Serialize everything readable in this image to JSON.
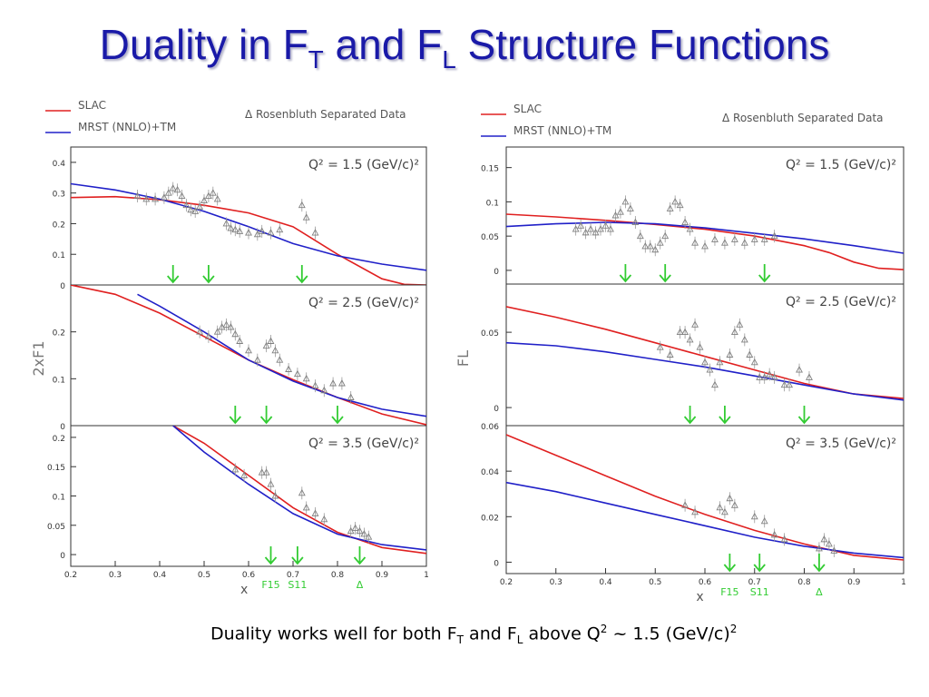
{
  "title": {
    "main": "Duality in F",
    "sub1": "T",
    "mid": " and F",
    "sub2": "L",
    "rest": " Structure Functions"
  },
  "caption": {
    "a": "Duality works well for both F",
    "sub1": "T",
    "b": " and F",
    "sub2": "L",
    "c": " above Q",
    "sup1": "2",
    "d": " ~ 1.5 (GeV/c)",
    "sup2": "2"
  },
  "colors": {
    "slac": "#e02020",
    "mrst": "#2020c8",
    "data": "#808080",
    "arrow": "#33cc33",
    "title": "#1a1aa8"
  },
  "chart_data": [
    {
      "type": "line",
      "ylabel": "2xF1",
      "xlabel": "x",
      "xlim": [
        0.2,
        1.0
      ],
      "x_ticks": [
        "0.2",
        "0.3",
        "0.4",
        "0.5",
        "0.6",
        "0.7",
        "0.8",
        "0.9",
        "1"
      ],
      "legend": {
        "entries": [
          "SLAC",
          "MRST (NNLO)+TM"
        ],
        "data_label": "Rosenbluth Separated Data"
      },
      "resonance_labels": [
        "F15",
        "S11",
        "Δ"
      ],
      "panels": [
        {
          "label": "Q² = 1.5 (GeV/c)²",
          "ylim": [
            0,
            0.45
          ],
          "y_ticks": [
            "0",
            "0.1",
            "0.2",
            "0.3",
            "0.4"
          ],
          "series": [
            {
              "name": "SLAC",
              "x": [
                0.2,
                0.3,
                0.4,
                0.5,
                0.6,
                0.7,
                0.8,
                0.9,
                0.95,
                1.0
              ],
              "values": [
                0.285,
                0.288,
                0.278,
                0.26,
                0.235,
                0.19,
                0.1,
                0.02,
                0.002,
                0
              ]
            },
            {
              "name": "MRST (NNLO)+TM",
              "x": [
                0.2,
                0.3,
                0.4,
                0.5,
                0.6,
                0.7,
                0.8,
                0.9,
                1.0
              ],
              "values": [
                0.33,
                0.31,
                0.28,
                0.24,
                0.19,
                0.135,
                0.095,
                0.068,
                0.048
              ]
            }
          ],
          "data": {
            "x": [
              0.35,
              0.37,
              0.39,
              0.41,
              0.42,
              0.43,
              0.44,
              0.45,
              0.46,
              0.47,
              0.48,
              0.49,
              0.5,
              0.51,
              0.52,
              0.53,
              0.55,
              0.56,
              0.57,
              0.58,
              0.6,
              0.62,
              0.63,
              0.65,
              0.67,
              0.72,
              0.73,
              0.75
            ],
            "y": [
              0.29,
              0.28,
              0.28,
              0.285,
              0.3,
              0.315,
              0.31,
              0.29,
              0.26,
              0.245,
              0.24,
              0.255,
              0.275,
              0.29,
              0.3,
              0.28,
              0.2,
              0.185,
              0.18,
              0.175,
              0.17,
              0.165,
              0.175,
              0.17,
              0.18,
              0.26,
              0.22,
              0.17
            ]
          },
          "arrows_x": [
            0.43,
            0.51,
            0.72
          ]
        },
        {
          "label": "Q² = 2.5 (GeV/c)²",
          "ylim": [
            0,
            0.3
          ],
          "y_ticks": [
            "0",
            "0.1",
            "0.2"
          ],
          "series": [
            {
              "name": "SLAC",
              "x": [
                0.2,
                0.3,
                0.4,
                0.5,
                0.6,
                0.7,
                0.8,
                0.9,
                1.0
              ],
              "values": [
                0.3,
                0.28,
                0.24,
                0.19,
                0.14,
                0.098,
                0.06,
                0.025,
                0.002
              ]
            },
            {
              "name": "MRST (NNLO)+TM",
              "x": [
                0.35,
                0.4,
                0.5,
                0.6,
                0.7,
                0.8,
                0.9,
                1.0
              ],
              "values": [
                0.28,
                0.255,
                0.2,
                0.14,
                0.095,
                0.06,
                0.035,
                0.02
              ]
            }
          ],
          "data": {
            "x": [
              0.49,
              0.51,
              0.53,
              0.54,
              0.55,
              0.56,
              0.57,
              0.58,
              0.6,
              0.62,
              0.64,
              0.65,
              0.66,
              0.67,
              0.69,
              0.71,
              0.73,
              0.75,
              0.77,
              0.79,
              0.81,
              0.83
            ],
            "y": [
              0.2,
              0.19,
              0.2,
              0.21,
              0.215,
              0.21,
              0.195,
              0.18,
              0.16,
              0.14,
              0.17,
              0.18,
              0.16,
              0.14,
              0.12,
              0.11,
              0.1,
              0.085,
              0.075,
              0.09,
              0.09,
              0.06
            ]
          },
          "arrows_x": [
            0.57,
            0.64,
            0.8
          ]
        },
        {
          "label": "Q² = 3.5 (GeV/c)²",
          "ylim": [
            -0.02,
            0.22
          ],
          "y_ticks": [
            "0",
            "0.05",
            "0.1",
            "0.15",
            "0.2"
          ],
          "series": [
            {
              "name": "SLAC",
              "x": [
                0.43,
                0.5,
                0.6,
                0.7,
                0.8,
                0.9,
                1.0
              ],
              "values": [
                0.22,
                0.19,
                0.135,
                0.08,
                0.038,
                0.012,
                0.002
              ]
            },
            {
              "name": "MRST (NNLO)+TM",
              "x": [
                0.43,
                0.5,
                0.6,
                0.7,
                0.8,
                0.9,
                1.0
              ],
              "values": [
                0.22,
                0.175,
                0.12,
                0.07,
                0.035,
                0.017,
                0.008
              ]
            }
          ],
          "data": {
            "x": [
              0.57,
              0.59,
              0.63,
              0.64,
              0.65,
              0.66,
              0.72,
              0.73,
              0.75,
              0.77,
              0.83,
              0.84,
              0.85,
              0.86,
              0.87
            ],
            "y": [
              0.145,
              0.135,
              0.14,
              0.14,
              0.12,
              0.1,
              0.105,
              0.08,
              0.07,
              0.06,
              0.04,
              0.045,
              0.04,
              0.035,
              0.03
            ]
          },
          "arrows_x": [
            0.65,
            0.71,
            0.85
          ]
        }
      ]
    },
    {
      "type": "line",
      "ylabel": "FL",
      "xlabel": "x",
      "xlim": [
        0.2,
        1.0
      ],
      "x_ticks": [
        "0.2",
        "0.3",
        "0.4",
        "0.5",
        "0.6",
        "0.7",
        "0.8",
        "0.9",
        "1"
      ],
      "legend": {
        "entries": [
          "SLAC",
          "MRST (NNLO)+TM"
        ],
        "data_label": "Rosenbluth Separated Data"
      },
      "resonance_labels": [
        "F15",
        "S11",
        "Δ"
      ],
      "panels": [
        {
          "label": "Q² = 1.5 (GeV/c)²",
          "ylim": [
            -0.02,
            0.18
          ],
          "y_ticks": [
            "0",
            "0.05",
            "0.1",
            "0.15"
          ],
          "series": [
            {
              "name": "SLAC",
              "x": [
                0.2,
                0.3,
                0.4,
                0.5,
                0.6,
                0.7,
                0.8,
                0.85,
                0.9,
                0.95,
                1.0
              ],
              "values": [
                0.082,
                0.078,
                0.073,
                0.067,
                0.06,
                0.05,
                0.036,
                0.026,
                0.012,
                0.003,
                0.001
              ]
            },
            {
              "name": "MRST (NNLO)+TM",
              "x": [
                0.2,
                0.3,
                0.4,
                0.5,
                0.6,
                0.7,
                0.8,
                0.9,
                1.0
              ],
              "values": [
                0.064,
                0.068,
                0.07,
                0.068,
                0.062,
                0.054,
                0.046,
                0.036,
                0.025
              ]
            }
          ],
          "data": {
            "x": [
              0.34,
              0.35,
              0.36,
              0.37,
              0.38,
              0.39,
              0.4,
              0.41,
              0.42,
              0.43,
              0.44,
              0.45,
              0.46,
              0.47,
              0.48,
              0.49,
              0.5,
              0.51,
              0.52,
              0.53,
              0.54,
              0.55,
              0.56,
              0.57,
              0.58,
              0.6,
              0.62,
              0.64,
              0.66,
              0.68,
              0.7,
              0.72,
              0.74
            ],
            "y": [
              0.06,
              0.065,
              0.055,
              0.06,
              0.055,
              0.06,
              0.065,
              0.06,
              0.08,
              0.085,
              0.1,
              0.09,
              0.07,
              0.05,
              0.035,
              0.035,
              0.03,
              0.04,
              0.05,
              0.09,
              0.1,
              0.095,
              0.07,
              0.06,
              0.04,
              0.035,
              0.045,
              0.04,
              0.045,
              0.04,
              0.045,
              0.045,
              0.05
            ]
          },
          "arrows_x": [
            0.44,
            0.52,
            0.72
          ]
        },
        {
          "label": "Q² = 2.5 (GeV/c)²",
          "ylim": [
            -0.012,
            0.082
          ],
          "y_ticks": [
            "0",
            "0.05"
          ],
          "series": [
            {
              "name": "SLAC",
              "x": [
                0.2,
                0.3,
                0.4,
                0.5,
                0.6,
                0.7,
                0.8,
                0.9,
                1.0
              ],
              "values": [
                0.067,
                0.06,
                0.052,
                0.043,
                0.034,
                0.025,
                0.016,
                0.009,
                0.006
              ]
            },
            {
              "name": "MRST (NNLO)+TM",
              "x": [
                0.2,
                0.3,
                0.4,
                0.5,
                0.6,
                0.7,
                0.8,
                0.9,
                1.0
              ],
              "values": [
                0.043,
                0.041,
                0.037,
                0.032,
                0.027,
                0.021,
                0.015,
                0.009,
                0.005
              ]
            }
          ],
          "data": {
            "x": [
              0.51,
              0.53,
              0.55,
              0.56,
              0.57,
              0.58,
              0.59,
              0.6,
              0.61,
              0.62,
              0.63,
              0.65,
              0.66,
              0.67,
              0.68,
              0.69,
              0.7,
              0.71,
              0.72,
              0.73,
              0.74,
              0.76,
              0.77,
              0.79,
              0.81
            ],
            "y": [
              0.04,
              0.035,
              0.05,
              0.05,
              0.045,
              0.055,
              0.04,
              0.03,
              0.025,
              0.015,
              0.03,
              0.035,
              0.05,
              0.055,
              0.045,
              0.035,
              0.03,
              0.02,
              0.02,
              0.022,
              0.02,
              0.015,
              0.015,
              0.025,
              0.02
            ]
          },
          "arrows_x": [
            0.57,
            0.64,
            0.8
          ]
        },
        {
          "label": "Q² = 3.5 (GeV/c)²",
          "ylim": [
            -0.005,
            0.06
          ],
          "y_ticks": [
            "0",
            "0.02",
            "0.04",
            "0.06"
          ],
          "series": [
            {
              "name": "SLAC",
              "x": [
                0.2,
                0.3,
                0.4,
                0.5,
                0.6,
                0.7,
                0.8,
                0.9,
                1.0
              ],
              "values": [
                0.056,
                0.047,
                0.038,
                0.029,
                0.021,
                0.014,
                0.008,
                0.003,
                0.001
              ]
            },
            {
              "name": "MRST (NNLO)+TM",
              "x": [
                0.2,
                0.3,
                0.4,
                0.5,
                0.6,
                0.7,
                0.8,
                0.9,
                1.0
              ],
              "values": [
                0.035,
                0.031,
                0.026,
                0.021,
                0.016,
                0.011,
                0.007,
                0.004,
                0.002
              ]
            }
          ],
          "data": {
            "x": [
              0.56,
              0.58,
              0.63,
              0.64,
              0.65,
              0.66,
              0.7,
              0.72,
              0.74,
              0.76,
              0.83,
              0.84,
              0.85,
              0.86
            ],
            "y": [
              0.025,
              0.022,
              0.024,
              0.022,
              0.028,
              0.025,
              0.02,
              0.018,
              0.012,
              0.01,
              0.006,
              0.01,
              0.008,
              0.005
            ]
          },
          "arrows_x": [
            0.65,
            0.71,
            0.83
          ]
        }
      ]
    }
  ]
}
